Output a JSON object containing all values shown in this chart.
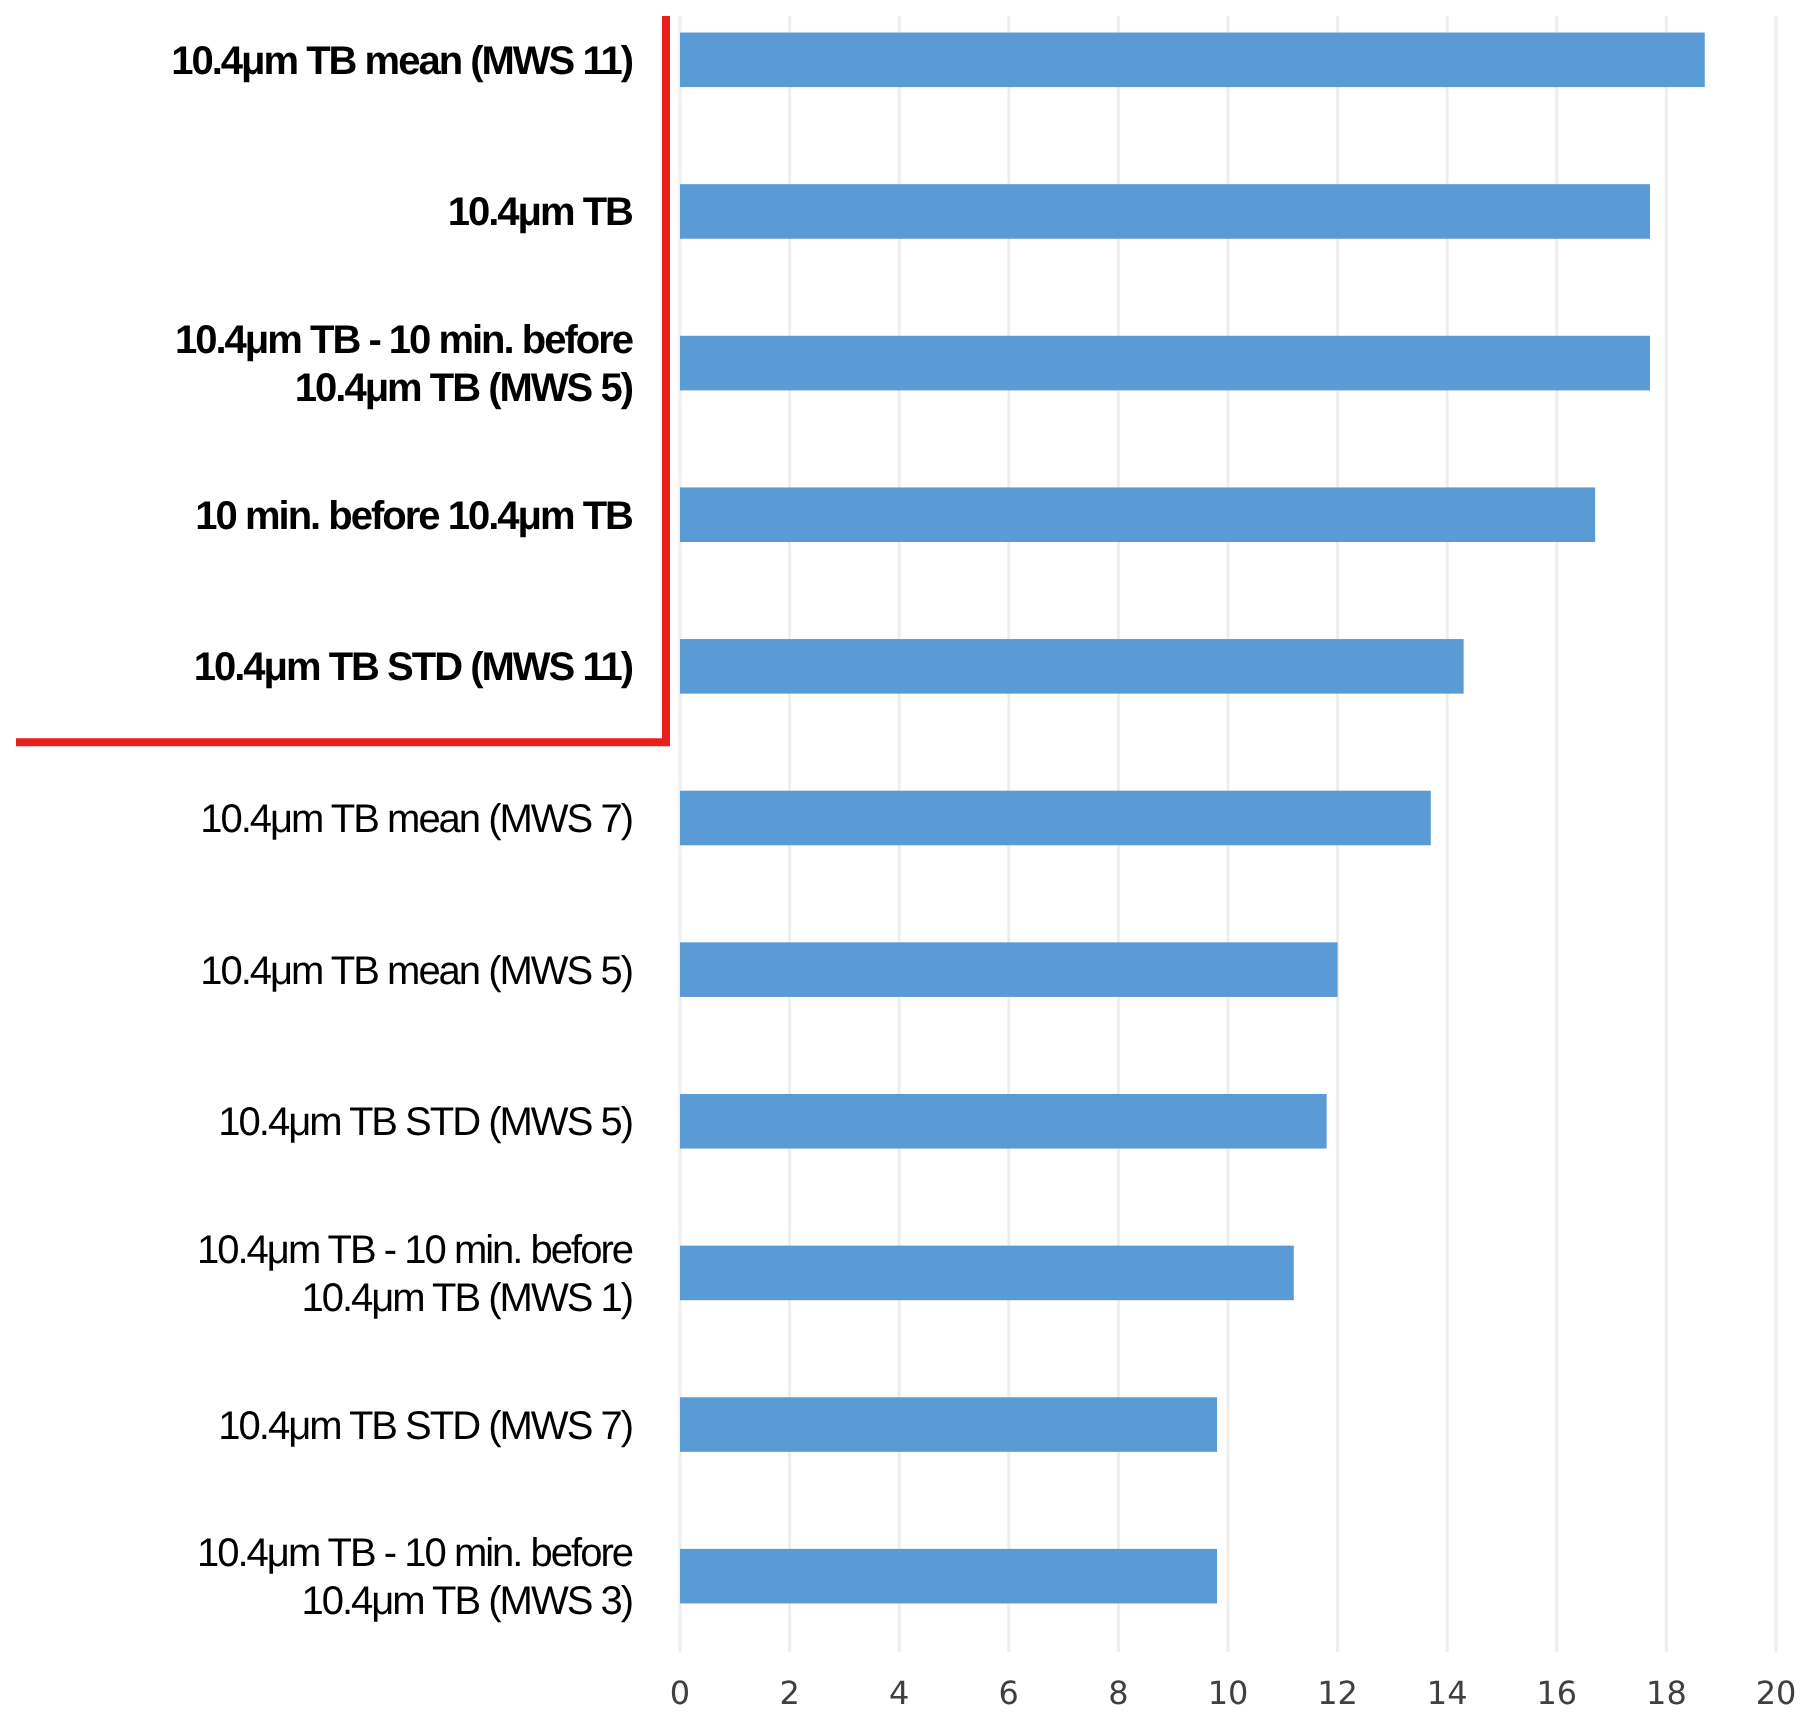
{
  "chart_data": {
    "type": "bar",
    "orientation": "horizontal",
    "categories": [
      "10.4μm TB mean (MWS 11)",
      "10.4μm TB",
      "10.4μm TB - 10 min. before 10.4μm TB (MWS 5)",
      "10 min. before 10.4μm TB",
      "10.4μm TB STD (MWS 11)",
      "10.4μm TB mean (MWS 7)",
      "10.4μm TB mean (MWS 5)",
      "10.4μm TB STD (MWS 5)",
      "10.4μm TB - 10 min. before 10.4μm TB (MWS 1)",
      "10.4μm TB STD (MWS 7)",
      "10.4μm TB - 10 min. before 10.4μm TB (MWS 3)"
    ],
    "values": [
      18.7,
      17.7,
      17.7,
      16.7,
      14.3,
      13.7,
      12.0,
      11.8,
      11.2,
      9.8,
      9.8
    ],
    "color": "#5b9bd5",
    "xlim": [
      0,
      20
    ],
    "xticks": [
      0,
      2,
      4,
      6,
      8,
      10,
      12,
      14,
      16,
      18,
      20
    ],
    "grid": "x"
  }
}
